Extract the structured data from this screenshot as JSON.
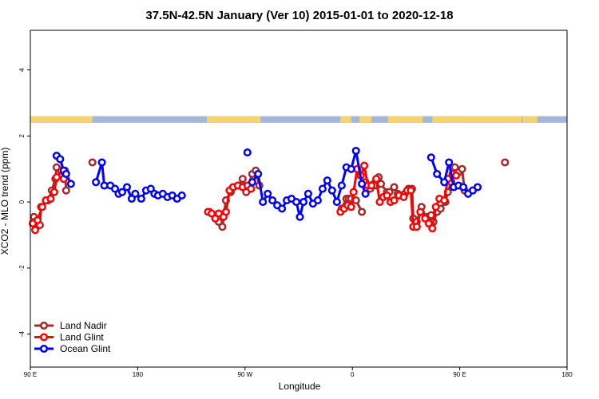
{
  "chart_data": {
    "type": "line",
    "title": "37.5N-42.5N January (Ver 10)   2015-01-01 to 2020-12-18",
    "xlabel": "Longitude",
    "ylabel": "XCO2 - MLO trend (ppm)",
    "xlim": [
      90,
      540
    ],
    "ylim": [
      -5,
      5.2
    ],
    "x_ticks": [
      {
        "value": 90,
        "label": "90 E"
      },
      {
        "value": 180,
        "label": "180"
      },
      {
        "value": 270,
        "label": "90 W"
      },
      {
        "value": 360,
        "label": "0"
      },
      {
        "value": 450,
        "label": "90 E"
      },
      {
        "value": 540,
        "label": "180"
      }
    ],
    "y_ticks": [
      {
        "value": -4,
        "label": "-4"
      },
      {
        "value": -2,
        "label": "-2"
      },
      {
        "value": 0,
        "label": "0"
      },
      {
        "value": 2,
        "label": "2"
      },
      {
        "value": 4,
        "label": "4"
      }
    ],
    "legend_position": "bottom-left",
    "land_strip": {
      "y_range": [
        2.4,
        2.6
      ],
      "ocean_color": "#a3b8d9",
      "land_color": "#f5d36f",
      "land_segments": [
        [
          90,
          142
        ],
        [
          238,
          283
        ],
        [
          350,
          359
        ],
        [
          366,
          376
        ],
        [
          390,
          419
        ],
        [
          427,
          450
        ],
        [
          450,
          502
        ],
        [
          503,
          515
        ]
      ]
    },
    "series": [
      {
        "name": "Land Nadir",
        "color": "#a52a2a",
        "segments": [
          [
            [
              93,
              -0.45
            ],
            [
              94,
              -0.6
            ],
            [
              98,
              -0.7
            ],
            [
              99,
              -0.15
            ],
            [
              105,
              0.05
            ],
            [
              108,
              0.35
            ],
            [
              111,
              0.7
            ],
            [
              112,
              1.05
            ],
            [
              116,
              0.8
            ],
            [
              119,
              0.95
            ],
            [
              120,
              0.35
            ]
          ],
          [
            [
              142,
              1.2
            ]
          ],
          [
            [
              240,
              -0.3
            ],
            [
              245,
              -0.45
            ],
            [
              248,
              -0.6
            ],
            [
              251,
              -0.75
            ],
            [
              254,
              0.05
            ],
            [
              258,
              0.3
            ],
            [
              260,
              0.45
            ],
            [
              265,
              0.5
            ],
            [
              268,
              0.7
            ],
            [
              271,
              0.3
            ],
            [
              276,
              0.85
            ],
            [
              279,
              0.95
            ],
            [
              282,
              0.5
            ]
          ],
          [
            [
              351,
              -0.2
            ],
            [
              355,
              0.1
            ],
            [
              357,
              0.1
            ],
            [
              359,
              0.1
            ],
            [
              363,
              0.05
            ],
            [
              368,
              -0.3
            ]
          ],
          [
            [
              371,
              0.6
            ],
            [
              375,
              0.4
            ],
            [
              378,
              0.55
            ],
            [
              380,
              0.5
            ],
            [
              382,
              0.75
            ],
            [
              384,
              0.55
            ],
            [
              389,
              0.3
            ],
            [
              391,
              0.3
            ],
            [
              395,
              0.45
            ],
            [
              398,
              0.25
            ],
            [
              400,
              0.2
            ],
            [
              404,
              0.25
            ],
            [
              407,
              0.4
            ],
            [
              410,
              0.4
            ],
            [
              411,
              -0.5
            ],
            [
              414,
              -0.6
            ],
            [
              418,
              -0.15
            ],
            [
              422,
              -0.5
            ],
            [
              423,
              -0.45
            ],
            [
              426,
              -0.4
            ],
            [
              428,
              -0.6
            ],
            [
              431,
              -0.3
            ],
            [
              434,
              -0.2
            ],
            [
              438,
              0.0
            ],
            [
              440,
              0.3
            ],
            [
              443,
              0.6
            ],
            [
              446,
              1.05
            ],
            [
              449,
              0.9
            ],
            [
              452,
              1.0
            ],
            [
              454,
              0.35
            ]
          ],
          [
            [
              488,
              1.2
            ]
          ]
        ]
      },
      {
        "name": "Land Glint",
        "color": "#ff0000",
        "segments": [
          [
            [
              92,
              -0.65
            ],
            [
              94,
              -0.85
            ],
            [
              96,
              -0.55
            ],
            [
              100,
              -0.15
            ],
            [
              103,
              0.05
            ],
            [
              107,
              0.1
            ],
            [
              110,
              0.3
            ],
            [
              112,
              0.75
            ],
            [
              116,
              0.95
            ],
            [
              118,
              0.7
            ]
          ],
          [
            [
              239,
              -0.3
            ],
            [
              242,
              -0.35
            ],
            [
              245,
              -0.5
            ],
            [
              248,
              -0.35
            ],
            [
              252,
              -0.45
            ],
            [
              254,
              -0.3
            ],
            [
              257,
              0.35
            ],
            [
              260,
              0.45
            ],
            [
              264,
              0.5
            ],
            [
              268,
              0.45
            ],
            [
              272,
              0.5
            ],
            [
              275,
              0.4
            ]
          ],
          [
            [
              350,
              -0.3
            ],
            [
              353,
              -0.2
            ],
            [
              356,
              -0.1
            ],
            [
              359,
              -0.15
            ],
            [
              361,
              0.3
            ],
            [
              364,
              1.0
            ],
            [
              367,
              0.8
            ],
            [
              370,
              1.1
            ],
            [
              373,
              0.5
            ],
            [
              376,
              0.5
            ],
            [
              380,
              0.7
            ],
            [
              383,
              0.0
            ],
            [
              386,
              0.15
            ],
            [
              389,
              0.2
            ],
            [
              392,
              0.0
            ],
            [
              395,
              0.05
            ],
            [
              399,
              0.2
            ],
            [
              403,
              0.15
            ],
            [
              406,
              0.35
            ],
            [
              409,
              0.35
            ],
            [
              411,
              -0.75
            ],
            [
              414,
              -0.75
            ],
            [
              417,
              -0.3
            ],
            [
              421,
              -0.5
            ],
            [
              424,
              -0.65
            ],
            [
              427,
              -0.8
            ],
            [
              430,
              -0.15
            ],
            [
              433,
              0.1
            ],
            [
              437,
              0.05
            ],
            [
              440,
              0.7
            ],
            [
              444,
              0.85
            ],
            [
              447,
              0.8
            ]
          ]
        ]
      },
      {
        "name": "Ocean Glint",
        "color": "#0000ff",
        "segments": [
          [
            [
              112,
              1.4
            ],
            [
              115,
              1.3
            ],
            [
              118,
              0.95
            ],
            [
              120,
              0.85
            ],
            [
              124,
              0.55
            ]
          ],
          [
            [
              145,
              0.6
            ],
            [
              150,
              1.2
            ],
            [
              152,
              0.5
            ],
            [
              157,
              0.5
            ],
            [
              161,
              0.4
            ],
            [
              164,
              0.25
            ],
            [
              167,
              0.3
            ],
            [
              171,
              0.45
            ],
            [
              175,
              0.1
            ],
            [
              178,
              0.25
            ],
            [
              183,
              0.1
            ],
            [
              187,
              0.35
            ],
            [
              191,
              0.4
            ],
            [
              194,
              0.25
            ],
            [
              197,
              0.2
            ],
            [
              201,
              0.25
            ],
            [
              205,
              0.15
            ],
            [
              209,
              0.2
            ],
            [
              213,
              0.1
            ],
            [
              217,
              0.2
            ]
          ],
          [
            [
              272,
              1.5
            ]
          ],
          [
            [
              276,
              0.6
            ],
            [
              281,
              0.85
            ],
            [
              285,
              0.0
            ],
            [
              289,
              0.25
            ],
            [
              293,
              0.05
            ],
            [
              297,
              -0.1
            ],
            [
              301,
              -0.2
            ],
            [
              305,
              0.05
            ],
            [
              309,
              0.1
            ],
            [
              313,
              0.0
            ],
            [
              316,
              -0.45
            ],
            [
              319,
              0.0
            ],
            [
              323,
              0.25
            ],
            [
              327,
              -0.05
            ],
            [
              331,
              0.05
            ],
            [
              335,
              0.4
            ],
            [
              339,
              0.65
            ],
            [
              343,
              0.35
            ],
            [
              347,
              0.0
            ],
            [
              351,
              0.5
            ],
            [
              355,
              1.05
            ],
            [
              359,
              1.0
            ],
            [
              363,
              1.55
            ],
            [
              368,
              0.55
            ],
            [
              371,
              0.25
            ]
          ],
          [
            [
              426,
              1.35
            ],
            [
              431,
              0.85
            ],
            [
              437,
              0.6
            ],
            [
              441,
              1.2
            ],
            [
              445,
              0.45
            ],
            [
              449,
              0.5
            ],
            [
              453,
              0.45
            ],
            [
              457,
              0.25
            ],
            [
              461,
              0.35
            ],
            [
              465,
              0.45
            ]
          ]
        ]
      }
    ]
  }
}
